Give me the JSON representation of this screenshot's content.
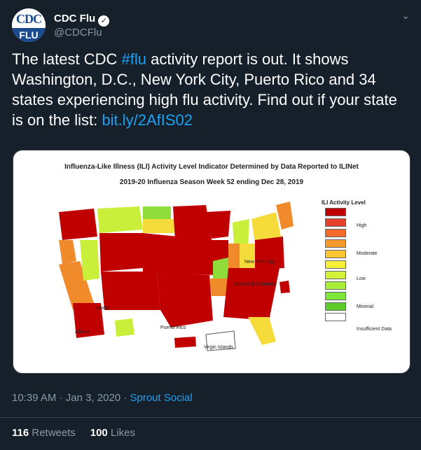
{
  "user": {
    "avatar_top": "CDC",
    "avatar_bottom": "FLU",
    "name": "CDC Flu",
    "handle": "@CDCFlu",
    "verified_icon": "verified-icon"
  },
  "tweet": {
    "text_part1": "The latest CDC ",
    "hashtag": "#flu",
    "text_part2": " activity report is out. It shows Washington, D.C., New York City, Puerto Rico and 34 states experiencing high flu activity. Find out if your state is on the list: ",
    "link": "bit.ly/2AfIS02"
  },
  "map": {
    "title_line1": "Influenza-Like Illness (ILI) Activity Level Indicator Determined by Data Reported to ILINet",
    "title_line2": "2019-20 Influenza Season Week 52 ending Dec 28, 2019",
    "legend_title": "ILI Activity Level",
    "legend_labels": {
      "high": "High",
      "moderate": "Moderate",
      "low": "Low",
      "minimal": "Minimal",
      "insufficient": "Insufficient Data"
    },
    "legend_colors": [
      "#c00000",
      "#e8402a",
      "#f26b2a",
      "#f79a2a",
      "#fbc533",
      "#f6ef3a",
      "#d2f23a",
      "#a9ef3a",
      "#7ee83a",
      "#5ccd2a",
      "#ffffff"
    ],
    "labels": {
      "nyc": "New York City",
      "dc": "District of Columbia",
      "hawaii": "Hawaii",
      "alaska": "Alaska",
      "puerto_rico": "Puerto Rico",
      "virgin_islands": "Virgin Islands"
    },
    "colors": {
      "high": "#c00000",
      "orange": "#f08a2a",
      "yellow": "#f6dc3a",
      "lime": "#c9ef3a",
      "green": "#8fdc3a"
    }
  },
  "meta": {
    "time": "10:39 AM",
    "dot": "·",
    "date": "Jan 3, 2020",
    "source": "Sprout Social"
  },
  "stats": {
    "retweets_count": "116",
    "retweets_label": "Retweets",
    "likes_count": "100",
    "likes_label": "Likes"
  }
}
